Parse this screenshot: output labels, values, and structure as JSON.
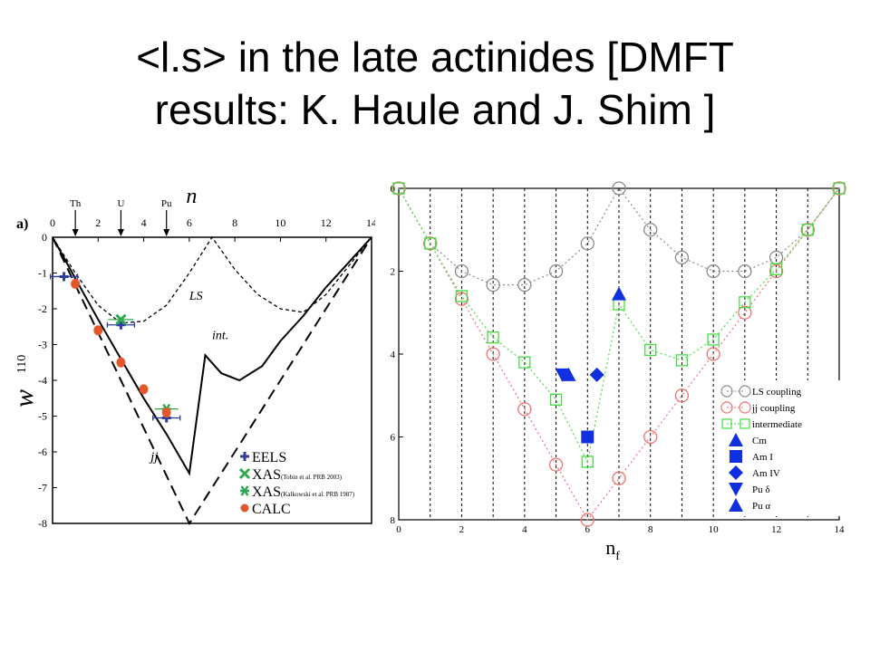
{
  "title": {
    "line1": "<l.s> in the late actinides [DMFT",
    "line2": "results: K. Haule and J. Shim ]"
  },
  "chart_data": [
    {
      "type": "line",
      "panel_label": "a)",
      "xlabel": "n",
      "ylabel": "w",
      "ylabel_sup": "110",
      "xlim": [
        0,
        14
      ],
      "ylim": [
        -8,
        0
      ],
      "x_ticks": [
        "0",
        "2",
        "4",
        "6",
        "8",
        "10",
        "12",
        "14"
      ],
      "y_ticks": [
        "0",
        "-1",
        "-2",
        "-3",
        "-4",
        "-5",
        "-6",
        "-7",
        "-8"
      ],
      "element_markers": [
        {
          "label": "Th",
          "x": 1
        },
        {
          "label": "U",
          "x": 3
        },
        {
          "label": "Pu",
          "x": 5
        }
      ],
      "series": [
        {
          "name": "LS",
          "style": "dashed-fine",
          "x": [
            0,
            1,
            2,
            3,
            4,
            5,
            6,
            7,
            8,
            9,
            10,
            11,
            12,
            13,
            14
          ],
          "values": [
            0,
            -1.0,
            -1.9,
            -2.4,
            -2.35,
            -1.9,
            -1.0,
            0,
            -0.9,
            -1.6,
            -2.0,
            -2.1,
            -1.6,
            -0.8,
            0
          ]
        },
        {
          "name": "int.",
          "style": "solid",
          "x": [
            0,
            1,
            2,
            3,
            4,
            5,
            6,
            6.7,
            7.4,
            8.2,
            9.2,
            10,
            11,
            12,
            13,
            14
          ],
          "values": [
            0,
            -1.15,
            -2.3,
            -3.4,
            -4.5,
            -5.5,
            -6.6,
            -3.3,
            -3.8,
            -4.0,
            -3.6,
            -2.9,
            -2.2,
            -1.4,
            -0.7,
            0
          ]
        },
        {
          "name": "jj",
          "style": "dashed-long",
          "x": [
            0,
            6,
            14
          ],
          "values": [
            0,
            -8,
            0
          ]
        }
      ],
      "points": [
        {
          "name": "EELS",
          "marker": "plus",
          "color": "#2e3d9c",
          "data": [
            [
              0.5,
              -1.1
            ],
            [
              3.0,
              -2.45
            ],
            [
              5.0,
              -5.05
            ]
          ]
        },
        {
          "name": "XAS",
          "note": "(Tobin et al. PRB 2003)",
          "marker": "x",
          "color": "#2fa84f",
          "data": [
            [
              3.0,
              -2.3
            ]
          ]
        },
        {
          "name": "XAS",
          "note": "(Kalkowski et al. PRB 1987)",
          "marker": "star",
          "color": "#2fa84f",
          "data": [
            [
              5.0,
              -4.8
            ]
          ]
        },
        {
          "name": "CALC",
          "marker": "dot",
          "color": "#e3572a",
          "data": [
            [
              1.0,
              -1.3
            ],
            [
              2.0,
              -2.6
            ],
            [
              3.0,
              -3.5
            ],
            [
              4.0,
              -4.25
            ],
            [
              5.0,
              -4.9
            ]
          ]
        }
      ],
      "legend": [
        {
          "label": "EELS",
          "note": ""
        },
        {
          "label": "XAS",
          "note": "(Tobin et al. PRB 2003)"
        },
        {
          "label": "XAS",
          "note": "(Kalkowski et al. PRB 1987)"
        },
        {
          "label": "CALC",
          "note": ""
        }
      ],
      "legend_position": "bottom-right",
      "colors": {
        "eels": "#2e3d9c",
        "xas": "#2fa84f",
        "calc": "#e3572a"
      }
    },
    {
      "type": "scatter",
      "xlabel": "n",
      "xlabel_sub": "f",
      "xlim": [
        0,
        14
      ],
      "ylim": [
        0,
        8
      ],
      "y_inverted": true,
      "x_ticks": [
        "0",
        "2",
        "4",
        "6",
        "8",
        "10",
        "12",
        "14"
      ],
      "y_ticks": [
        "0",
        "2",
        "4",
        "6",
        "8"
      ],
      "grid": "vertical dotted lines at each integer",
      "series": [
        {
          "name": "LS coupling",
          "marker": "circle",
          "color": "#8a8a8a",
          "x": [
            0,
            1,
            2,
            3,
            4,
            5,
            6,
            7,
            8,
            9,
            10,
            11,
            12,
            13,
            14
          ],
          "values": [
            0,
            1.33,
            2.0,
            2.33,
            2.33,
            2.0,
            1.33,
            0,
            1.0,
            1.67,
            2.0,
            2.0,
            1.67,
            1.0,
            0
          ]
        },
        {
          "name": "jj coupling",
          "marker": "circle",
          "color": "#f07070",
          "x": [
            0,
            1,
            2,
            3,
            4,
            5,
            6,
            7,
            8,
            9,
            10,
            11,
            12,
            13,
            14
          ],
          "values": [
            0,
            1.33,
            2.67,
            4.0,
            5.33,
            6.67,
            8.0,
            7.0,
            6.0,
            5.0,
            4.0,
            3.0,
            2.0,
            1.0,
            0
          ]
        },
        {
          "name": "intermediate",
          "marker": "square",
          "color": "#44dd44",
          "x": [
            0,
            1,
            2,
            3,
            4,
            5,
            6,
            7,
            8,
            9,
            10,
            11,
            12,
            13,
            14
          ],
          "values": [
            0,
            1.33,
            2.6,
            3.6,
            4.2,
            5.1,
            6.6,
            2.8,
            3.9,
            4.15,
            3.65,
            2.75,
            1.95,
            1.0,
            0
          ]
        }
      ],
      "points": [
        {
          "name": "Cm",
          "marker": "triangle-up",
          "color": "#1030e0",
          "x": 7.0,
          "y": 2.55
        },
        {
          "name": "Am I",
          "marker": "square-filled",
          "color": "#1030e0",
          "x": 6.0,
          "y": 6.0
        },
        {
          "name": "Am IV",
          "marker": "diamond",
          "color": "#1030e0",
          "x": 6.3,
          "y": 4.5
        },
        {
          "name": "Pu δ",
          "marker": "triangle-down",
          "color": "#1030e0",
          "x": 5.2,
          "y": 4.5
        },
        {
          "name": "Pu α",
          "marker": "triangle-up",
          "color": "#1030e0",
          "x": 5.4,
          "y": 4.5
        }
      ],
      "legend": [
        "LS coupling",
        "jj coupling",
        "intermediate",
        "Cm",
        "Am I",
        "Am IV",
        "Pu δ",
        "Pu α"
      ],
      "legend_position": "right"
    }
  ]
}
